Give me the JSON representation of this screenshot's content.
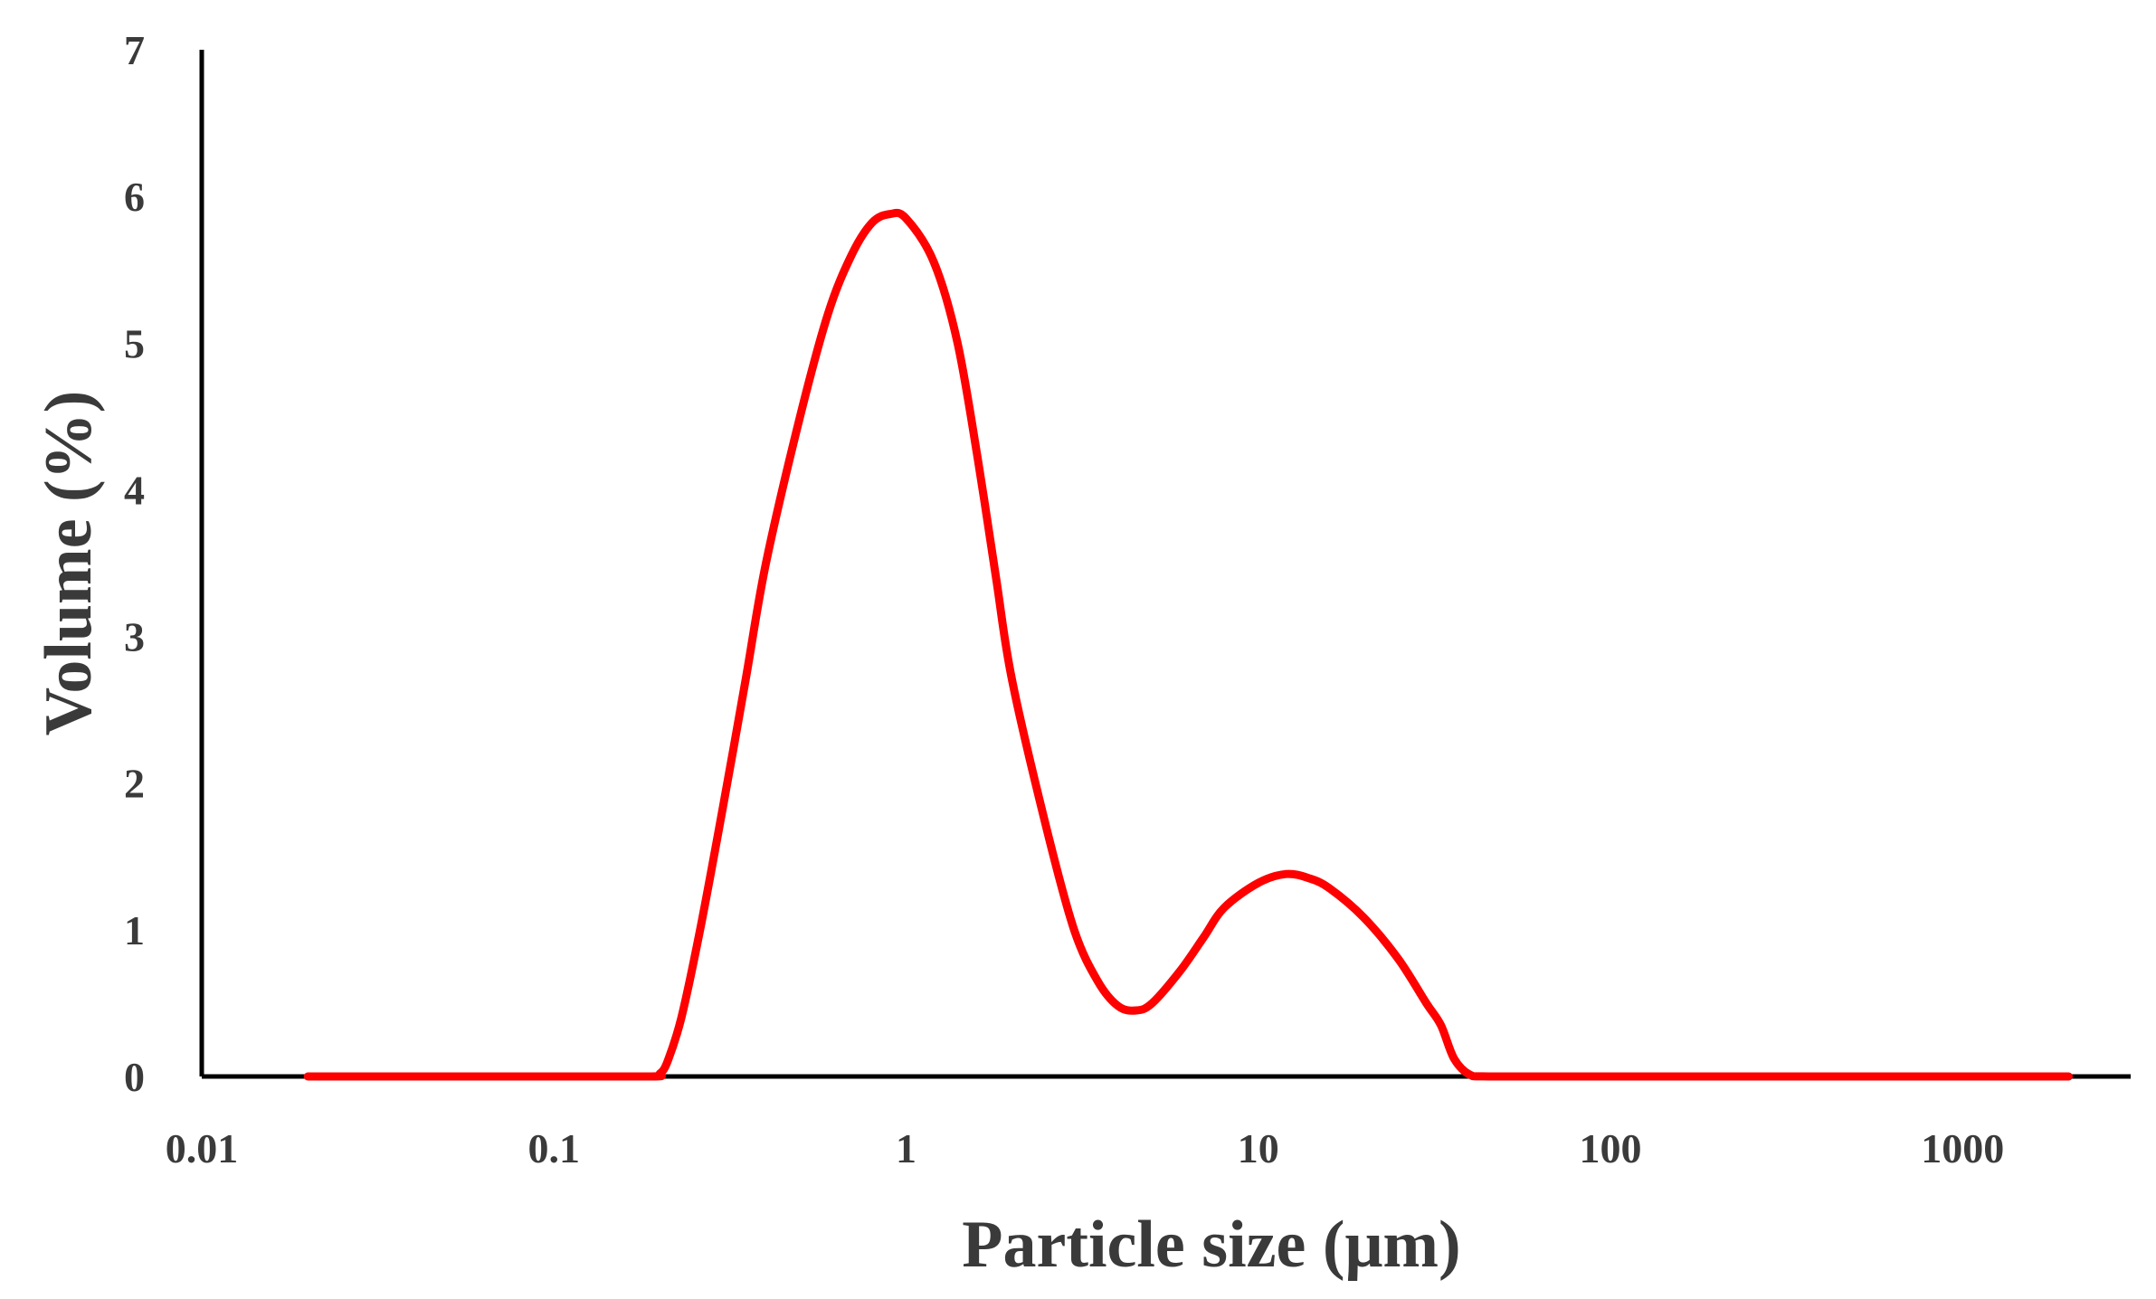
{
  "chart_data": {
    "type": "line",
    "title": "",
    "xlabel": "Particle size (μm)",
    "ylabel": "Volume (%)",
    "xscale": "log",
    "xlim": [
      0.01,
      3000
    ],
    "ylim": [
      0,
      7
    ],
    "grid": false,
    "legend": "none",
    "x_ticks": [
      {
        "value": 0.01,
        "label": "0.01"
      },
      {
        "value": 0.1,
        "label": "0.1"
      },
      {
        "value": 1,
        "label": "1"
      },
      {
        "value": 10,
        "label": "10"
      },
      {
        "value": 100,
        "label": "100"
      },
      {
        "value": 1000,
        "label": "1000"
      }
    ],
    "y_ticks": [
      {
        "value": 0,
        "label": "0"
      },
      {
        "value": 1,
        "label": "1"
      },
      {
        "value": 2,
        "label": "2"
      },
      {
        "value": 3,
        "label": "3"
      },
      {
        "value": 4,
        "label": "4"
      },
      {
        "value": 5,
        "label": "5"
      },
      {
        "value": 6,
        "label": "6"
      },
      {
        "value": 7,
        "label": "7"
      }
    ],
    "series": [
      {
        "color": "#ff0000",
        "points": [
          [
            0.02,
            0
          ],
          [
            0.05,
            0
          ],
          [
            0.1,
            0
          ],
          [
            0.19,
            0
          ],
          [
            0.2,
            0.02
          ],
          [
            0.21,
            0.1
          ],
          [
            0.23,
            0.4
          ],
          [
            0.26,
            1.0
          ],
          [
            0.3,
            1.8
          ],
          [
            0.35,
            2.7
          ],
          [
            0.4,
            3.5
          ],
          [
            0.5,
            4.5
          ],
          [
            0.6,
            5.2
          ],
          [
            0.7,
            5.6
          ],
          [
            0.8,
            5.82
          ],
          [
            0.9,
            5.88
          ],
          [
            1.0,
            5.85
          ],
          [
            1.2,
            5.55
          ],
          [
            1.4,
            5.0
          ],
          [
            1.6,
            4.2
          ],
          [
            1.8,
            3.4
          ],
          [
            2.0,
            2.7
          ],
          [
            2.5,
            1.7
          ],
          [
            3.0,
            1.0
          ],
          [
            3.5,
            0.65
          ],
          [
            4.0,
            0.48
          ],
          [
            4.5,
            0.45
          ],
          [
            5.0,
            0.5
          ],
          [
            6.0,
            0.72
          ],
          [
            7.0,
            0.95
          ],
          [
            8.0,
            1.15
          ],
          [
            10,
            1.32
          ],
          [
            12,
            1.38
          ],
          [
            14,
            1.35
          ],
          [
            16,
            1.28
          ],
          [
            20,
            1.08
          ],
          [
            25,
            0.8
          ],
          [
            30,
            0.5
          ],
          [
            33,
            0.35
          ],
          [
            36,
            0.12
          ],
          [
            40,
            0.01
          ],
          [
            45,
            0
          ],
          [
            100,
            0
          ],
          [
            500,
            0
          ],
          [
            1000,
            0
          ],
          [
            2000,
            0
          ]
        ]
      }
    ]
  }
}
